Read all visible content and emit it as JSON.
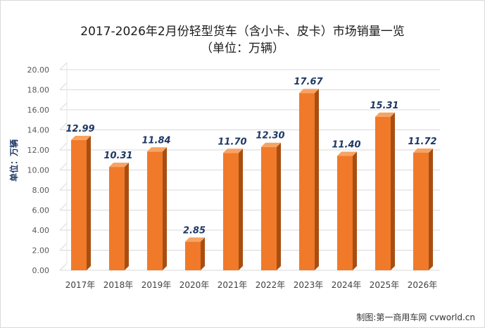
{
  "chart_data": {
    "type": "bar",
    "title": "2017-2026年2月份轻型货车（含小卡、皮卡）市场销量一览",
    "subtitle": "（单位：万辆）",
    "ylabel": "单位：万辆",
    "xlabel": "",
    "categories": [
      "2017年",
      "2018年",
      "2019年",
      "2020年",
      "2021年",
      "2022年",
      "2023年",
      "2024年",
      "2025年",
      "2026年"
    ],
    "values": [
      12.99,
      10.31,
      11.84,
      2.85,
      11.7,
      12.3,
      17.67,
      11.4,
      15.31,
      11.72
    ],
    "value_labels": [
      "12.99",
      "10.31",
      "11.84",
      "2.85",
      "11.70",
      "12.30",
      "17.67",
      "11.40",
      "15.31",
      "11.72"
    ],
    "ylim": [
      0,
      20
    ],
    "yticks": [
      "0.00",
      "2.00",
      "4.00",
      "6.00",
      "8.00",
      "10.00",
      "12.00",
      "14.00",
      "16.00",
      "18.00",
      "20.00"
    ],
    "grid": true,
    "legend": "none",
    "bar_color": "#f07a2a",
    "bar_side_color": "#a94e12",
    "bar_top_color": "#f7a364",
    "label_color": "#1f3864"
  },
  "credit": "制图:第一商用车网 cvworld.cn"
}
